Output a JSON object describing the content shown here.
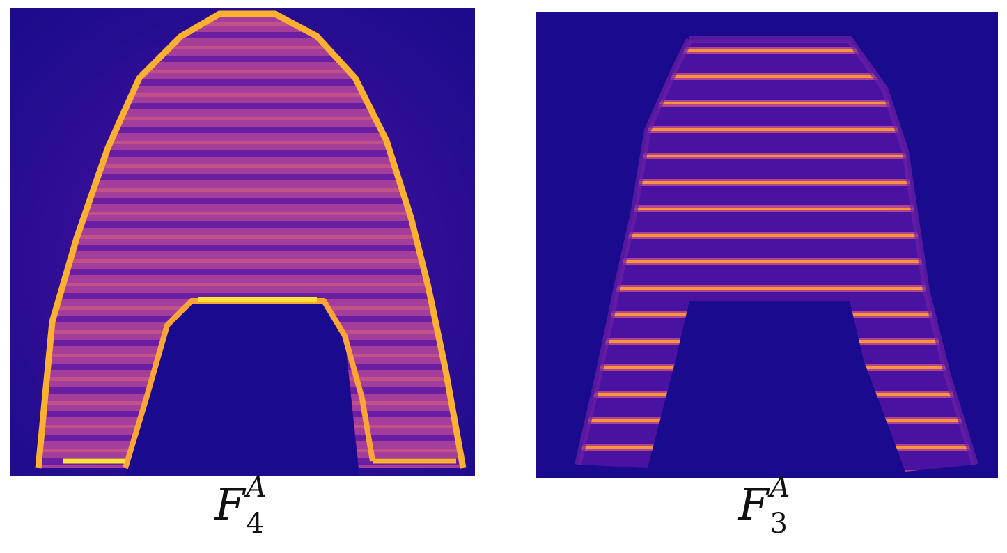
{
  "panels": [
    {
      "id": "heatmap-1",
      "caption": {
        "base": "F",
        "superscript": "A",
        "subscript": "4"
      },
      "colormap": "plasma"
    },
    {
      "id": "heatmap-2",
      "caption": {
        "base": "F",
        "superscript": "A",
        "subscript": "3"
      },
      "colormap": "plasma"
    }
  ],
  "colors": {
    "background": "#21108a",
    "dark": "#12078a",
    "mid": "#9a2fa1",
    "warm": "#d6567b",
    "bright": "#fbb12f",
    "hot": "#fce436"
  }
}
